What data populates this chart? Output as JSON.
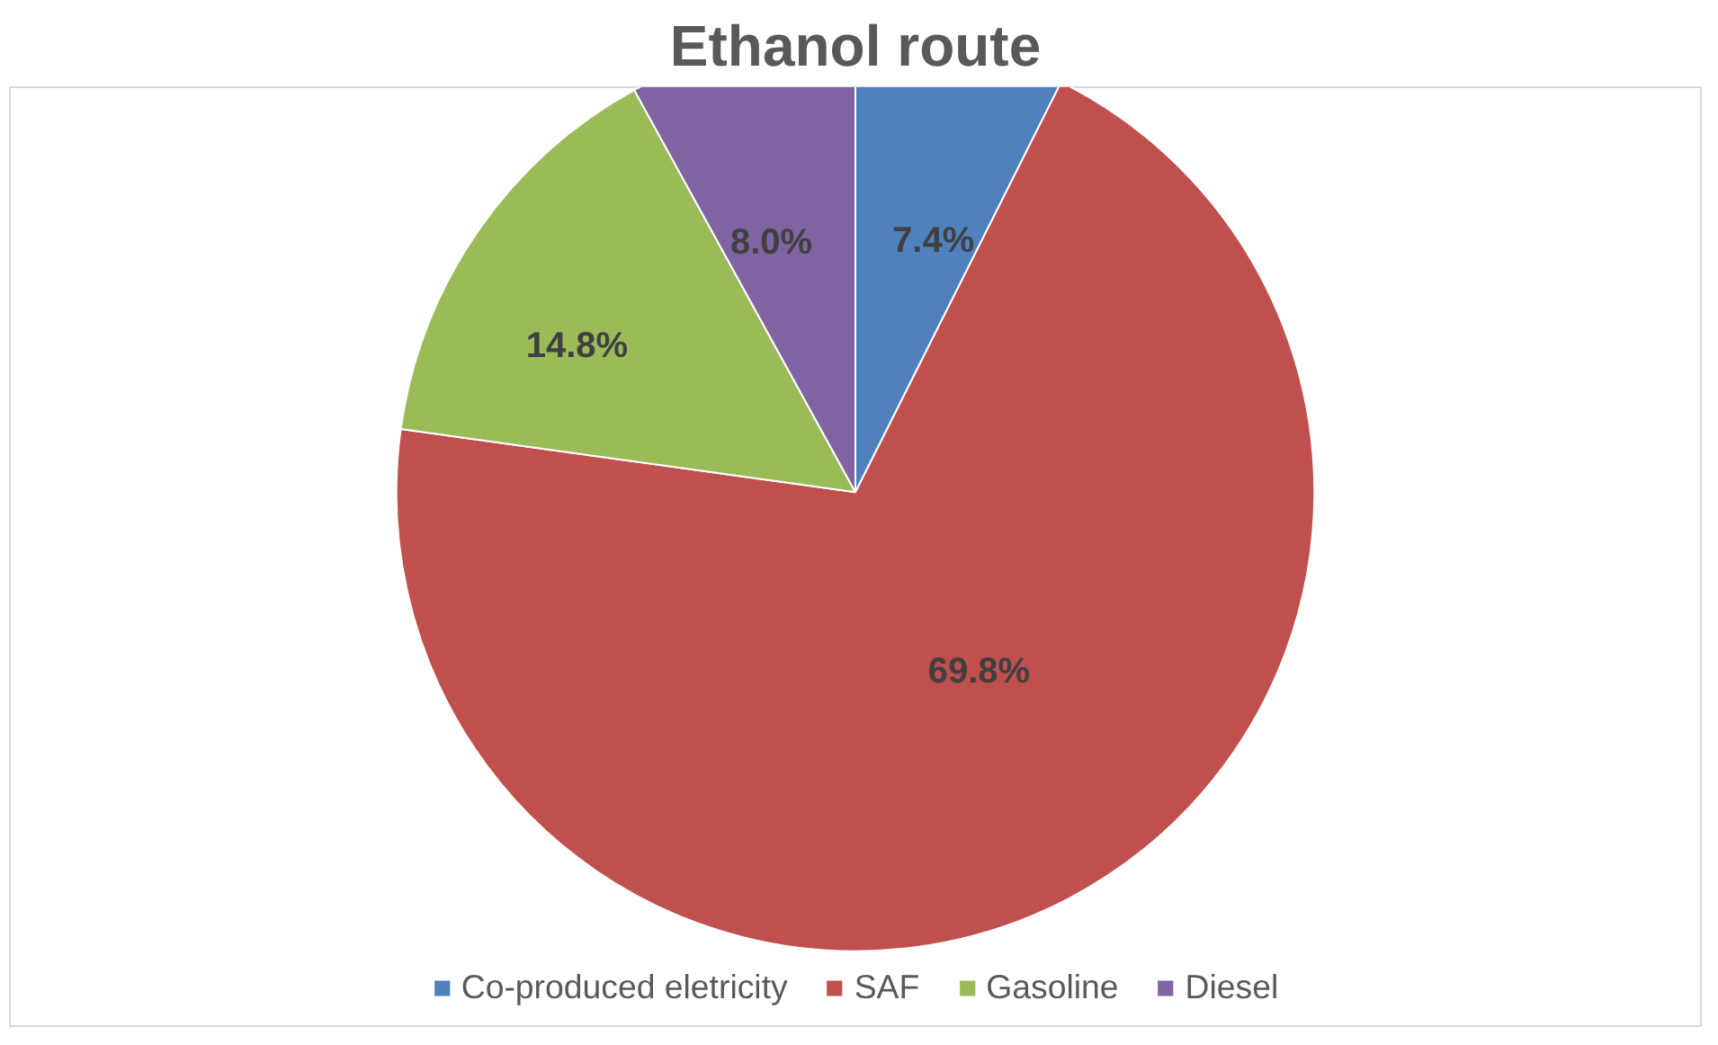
{
  "chart_data": {
    "type": "pie",
    "title": "Ethanol route",
    "categories": [
      "Co-produced eletricity",
      "SAF",
      "Gasoline",
      "Diesel"
    ],
    "values": [
      7.4,
      69.8,
      14.8,
      8.0
    ],
    "value_labels": [
      "7.4%",
      "69.8%",
      "14.8%",
      "8.0%"
    ],
    "colors": [
      "#4f81bd",
      "#c0504d",
      "#9bbb59",
      "#8064a2"
    ],
    "legend": "bottom"
  }
}
